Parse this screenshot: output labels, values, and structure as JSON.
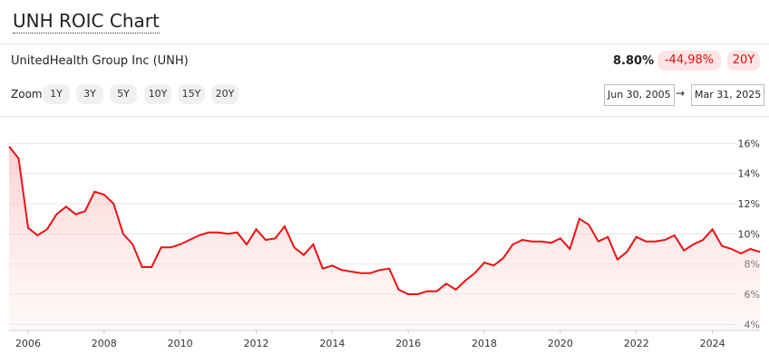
{
  "header": {
    "title": "UNH ROIC Chart",
    "company": "UnitedHealth Group Inc (UNH)",
    "current_value": "8.80%",
    "change": "-44,98%",
    "period": "20Y"
  },
  "controls": {
    "zoom_label": "Zoom",
    "zoom_buttons": [
      "1Y",
      "3Y",
      "5Y",
      "10Y",
      "15Y",
      "20Y"
    ],
    "start_date": "Jun 30, 2005",
    "arrow": "→",
    "end_date": "Mar 31, 2025"
  },
  "chart_data": {
    "type": "area",
    "color": "#ee1111",
    "grid": true,
    "x": [
      2005.5,
      2005.75,
      2006,
      2006.25,
      2006.5,
      2006.75,
      2007,
      2007.25,
      2007.5,
      2007.75,
      2008,
      2008.25,
      2008.5,
      2008.75,
      2009,
      2009.25,
      2009.5,
      2009.75,
      2010,
      2010.25,
      2010.5,
      2010.75,
      2011,
      2011.25,
      2011.5,
      2011.75,
      2012,
      2012.25,
      2012.5,
      2012.75,
      2013,
      2013.25,
      2013.5,
      2013.75,
      2014,
      2014.25,
      2014.5,
      2014.75,
      2015,
      2015.25,
      2015.5,
      2015.75,
      2016,
      2016.25,
      2016.5,
      2016.75,
      2017,
      2017.25,
      2017.5,
      2017.75,
      2018,
      2018.25,
      2018.5,
      2018.75,
      2019,
      2019.25,
      2019.5,
      2019.75,
      2020,
      2020.25,
      2020.5,
      2020.75,
      2021,
      2021.25,
      2021.5,
      2021.75,
      2022,
      2022.25,
      2022.5,
      2022.75,
      2023,
      2023.25,
      2023.5,
      2023.75,
      2024,
      2024.25,
      2024.5,
      2024.75,
      2025,
      2025.25
    ],
    "series": [
      {
        "name": "ROIC",
        "color": "#ee1111",
        "values": [
          15.8,
          15.0,
          10.4,
          9.9,
          10.3,
          11.3,
          11.8,
          11.3,
          11.5,
          12.8,
          12.6,
          12.0,
          10.0,
          9.3,
          7.8,
          7.8,
          9.1,
          9.1,
          9.3,
          9.6,
          9.9,
          10.1,
          10.1,
          10.0,
          10.1,
          9.3,
          10.3,
          9.6,
          9.7,
          10.5,
          9.1,
          8.6,
          9.3,
          7.7,
          7.9,
          7.6,
          7.5,
          7.4,
          7.4,
          7.6,
          7.7,
          6.3,
          6.0,
          6.0,
          6.2,
          6.2,
          6.7,
          6.3,
          6.9,
          7.4,
          8.1,
          7.9,
          8.4,
          9.3,
          9.6,
          9.5,
          9.5,
          9.4,
          9.7,
          9.0,
          11.0,
          10.6,
          9.5,
          9.8,
          8.3,
          8.8,
          9.8,
          9.5,
          9.5,
          9.6,
          9.9,
          8.9,
          9.3,
          9.6,
          10.3,
          9.2,
          9.0,
          8.7,
          9.0,
          8.8
        ]
      }
    ],
    "xlim": [
      2005.5,
      2025.25
    ],
    "xticks": [
      2006,
      2008,
      2010,
      2012,
      2014,
      2016,
      2018,
      2020,
      2022,
      2024
    ],
    "ylim": [
      3.6,
      16.5
    ],
    "yticks": [
      {
        "value": 4,
        "label": "4%"
      },
      {
        "value": 6,
        "label": "6%"
      },
      {
        "value": 8,
        "label": "8%"
      },
      {
        "value": 10,
        "label": "10%"
      },
      {
        "value": 12,
        "label": "12%"
      },
      {
        "value": 14,
        "label": "14%"
      },
      {
        "value": 16,
        "label": "16%"
      }
    ]
  }
}
